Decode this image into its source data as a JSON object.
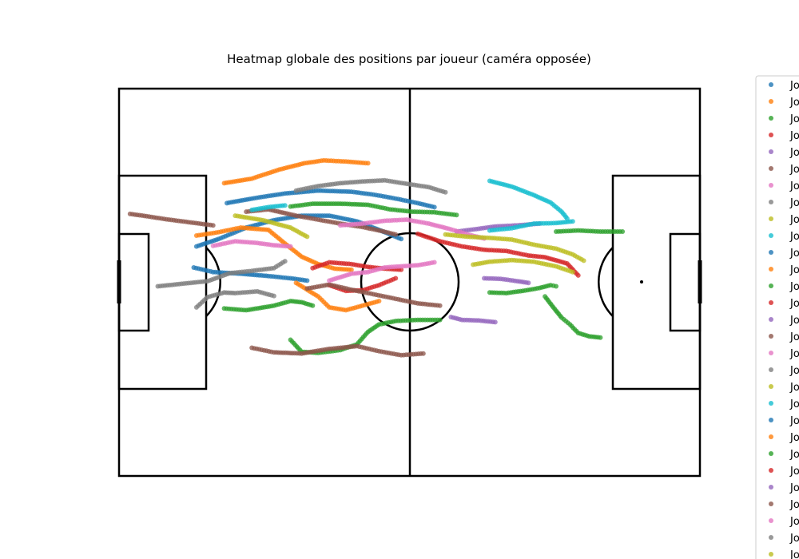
{
  "chart_data": {
    "type": "scatter",
    "title": "Heatmap globale des positions par joueur (caméra opposée)",
    "xlabel": "",
    "ylabel": "",
    "xlim": [
      0,
      105
    ],
    "ylim": [
      0,
      68
    ],
    "grid": false,
    "legend": {
      "placement": "right-outside",
      "visible_text": "Jo"
    },
    "colors": [
      "#1f77b4",
      "#ff7f0e",
      "#2ca02c",
      "#d62728",
      "#9467bd",
      "#8c564b",
      "#e377c2",
      "#7f7f7f",
      "#bcbd22",
      "#17becf"
    ],
    "series": [
      {
        "color": "#1f77b4",
        "points": [
          [
            19.5,
            47.9
          ],
          [
            24,
            48.7
          ],
          [
            30,
            49.6
          ],
          [
            36,
            50.1
          ],
          [
            42,
            49.9
          ],
          [
            46,
            49.4
          ],
          [
            50,
            48.7
          ],
          [
            54,
            47.9
          ],
          [
            57,
            47.2
          ]
        ]
      },
      {
        "color": "#1f77b4",
        "points": [
          [
            14,
            40.3
          ],
          [
            18,
            41.6
          ],
          [
            23,
            43.6
          ],
          [
            28,
            44.9
          ],
          [
            33,
            45.7
          ],
          [
            38,
            45.7
          ],
          [
            43,
            44.7
          ],
          [
            47,
            43.2
          ],
          [
            51,
            41.6
          ]
        ]
      },
      {
        "color": "#1f77b4",
        "points": [
          [
            13.5,
            36.6
          ],
          [
            17,
            35.8
          ],
          [
            22,
            35.5
          ],
          [
            27,
            35.1
          ],
          [
            31,
            34.7
          ],
          [
            34,
            34.3
          ]
        ]
      },
      {
        "color": "#ff7f0e",
        "points": [
          [
            19,
            51.4
          ],
          [
            24,
            52.2
          ],
          [
            29,
            53.8
          ],
          [
            33.5,
            54.9
          ],
          [
            37,
            55.4
          ],
          [
            41,
            55.2
          ],
          [
            45,
            54.9
          ]
        ]
      },
      {
        "color": "#ff7f0e",
        "points": [
          [
            14,
            42.2
          ],
          [
            18,
            42.8
          ],
          [
            22,
            43.6
          ],
          [
            27,
            43.2
          ],
          [
            30,
            40.8
          ],
          [
            33,
            38.5
          ],
          [
            36,
            37.2
          ],
          [
            39,
            36.4
          ],
          [
            42,
            36.2
          ]
        ]
      },
      {
        "color": "#ff7f0e",
        "points": [
          [
            32,
            33.9
          ],
          [
            36,
            31.5
          ],
          [
            38,
            29.6
          ],
          [
            41,
            29.1
          ],
          [
            44,
            29.9
          ],
          [
            47,
            30.7
          ]
        ]
      },
      {
        "color": "#2ca02c",
        "points": [
          [
            31,
            47.3
          ],
          [
            35,
            47.8
          ],
          [
            40,
            47.8
          ],
          [
            45,
            47.6
          ],
          [
            49,
            46.8
          ],
          [
            53,
            46.4
          ],
          [
            57,
            46.3
          ],
          [
            61,
            45.8
          ]
        ]
      },
      {
        "color": "#2ca02c",
        "points": [
          [
            19,
            29.4
          ],
          [
            23,
            29.1
          ],
          [
            28,
            29.9
          ],
          [
            31,
            30.7
          ],
          [
            33,
            30.5
          ],
          [
            35,
            29.9
          ]
        ]
      },
      {
        "color": "#2ca02c",
        "points": [
          [
            31,
            23.9
          ],
          [
            33,
            21.8
          ],
          [
            36,
            21.6
          ],
          [
            40,
            22.1
          ],
          [
            43,
            23.1
          ],
          [
            45,
            25.3
          ],
          [
            47,
            26.6
          ],
          [
            50,
            27.2
          ],
          [
            54,
            27.4
          ],
          [
            58,
            27.4
          ]
        ]
      },
      {
        "color": "#2ca02c",
        "points": [
          [
            79,
            42.9
          ],
          [
            83,
            43.1
          ],
          [
            87,
            42.9
          ],
          [
            91,
            42.9
          ]
        ]
      },
      {
        "color": "#2ca02c",
        "points": [
          [
            77,
            31.5
          ],
          [
            78.5,
            29.6
          ],
          [
            80,
            27.8
          ],
          [
            81.5,
            26.6
          ],
          [
            83,
            25.1
          ],
          [
            85,
            24.5
          ],
          [
            87,
            24.3
          ]
        ]
      },
      {
        "color": "#2ca02c",
        "points": [
          [
            67,
            32.2
          ],
          [
            70,
            32.1
          ],
          [
            73,
            32.5
          ],
          [
            76,
            33.0
          ],
          [
            78,
            33.5
          ],
          [
            79,
            33.3
          ]
        ]
      },
      {
        "color": "#d62728",
        "points": [
          [
            35,
            36.5
          ],
          [
            38,
            37.5
          ],
          [
            42,
            37.2
          ],
          [
            45,
            36.7
          ],
          [
            48,
            36.4
          ],
          [
            51,
            36.2
          ]
        ]
      },
      {
        "color": "#d62728",
        "points": [
          [
            54,
            42.5
          ],
          [
            58,
            41.2
          ],
          [
            62,
            40.3
          ],
          [
            66,
            39.7
          ],
          [
            70,
            39.5
          ],
          [
            74,
            38.7
          ],
          [
            77,
            38.4
          ],
          [
            81,
            37.3
          ],
          [
            83,
            35.2
          ]
        ]
      },
      {
        "color": "#d62728",
        "points": [
          [
            38,
            33.5
          ],
          [
            41,
            32.5
          ],
          [
            44,
            32.6
          ],
          [
            47,
            33.5
          ],
          [
            50,
            34.7
          ]
        ]
      },
      {
        "color": "#9467bd",
        "points": [
          [
            61,
            42.9
          ],
          [
            65,
            43.4
          ],
          [
            68,
            43.8
          ],
          [
            72,
            44.0
          ],
          [
            76,
            44.3
          ]
        ]
      },
      {
        "color": "#9467bd",
        "points": [
          [
            66,
            34.7
          ],
          [
            69,
            34.6
          ],
          [
            72,
            34.2
          ],
          [
            74,
            33.9
          ]
        ]
      },
      {
        "color": "#9467bd",
        "points": [
          [
            60,
            27.9
          ],
          [
            62,
            27.4
          ],
          [
            65,
            27.3
          ],
          [
            68,
            27.0
          ]
        ]
      },
      {
        "color": "#8c564b",
        "points": [
          [
            23,
            46.4
          ],
          [
            27,
            46.8
          ],
          [
            32,
            45.7
          ],
          [
            36,
            45.0
          ],
          [
            40,
            44.3
          ],
          [
            44,
            43.7
          ],
          [
            47,
            43.1
          ],
          [
            50,
            42.4
          ]
        ]
      },
      {
        "color": "#8c564b",
        "points": [
          [
            34,
            32.9
          ],
          [
            38,
            33.6
          ],
          [
            42,
            32.7
          ],
          [
            46,
            31.9
          ],
          [
            50,
            31.1
          ],
          [
            54,
            30.3
          ],
          [
            58,
            29.9
          ]
        ]
      },
      {
        "color": "#8c564b",
        "points": [
          [
            24,
            22.5
          ],
          [
            28,
            21.7
          ],
          [
            33,
            21.5
          ],
          [
            38,
            22.3
          ],
          [
            43,
            22.8
          ],
          [
            47,
            21.9
          ],
          [
            51,
            21.2
          ],
          [
            55,
            21.5
          ]
        ]
      },
      {
        "color": "#8c564b",
        "points": [
          [
            2,
            46.0
          ],
          [
            5,
            45.6
          ],
          [
            9,
            45.0
          ],
          [
            13,
            44.5
          ],
          [
            17,
            44.0
          ]
        ]
      },
      {
        "color": "#e377c2",
        "points": [
          [
            40,
            44.0
          ],
          [
            44,
            44.3
          ],
          [
            48,
            44.8
          ],
          [
            52,
            45.0
          ],
          [
            56,
            44.3
          ],
          [
            60,
            43.3
          ],
          [
            63,
            42.4
          ],
          [
            66,
            41.7
          ]
        ]
      },
      {
        "color": "#e377c2",
        "points": [
          [
            38,
            34.3
          ],
          [
            42,
            35.5
          ],
          [
            45,
            35.8
          ],
          [
            48,
            36.6
          ],
          [
            51,
            36.8
          ],
          [
            54,
            37.0
          ],
          [
            57,
            37.5
          ]
        ]
      },
      {
        "color": "#e377c2",
        "points": [
          [
            17,
            40.4
          ],
          [
            21,
            41.2
          ],
          [
            25,
            40.9
          ],
          [
            28,
            40.5
          ],
          [
            31,
            40.3
          ]
        ]
      },
      {
        "color": "#7f7f7f",
        "points": [
          [
            32,
            50.1
          ],
          [
            36,
            50.9
          ],
          [
            40,
            51.4
          ],
          [
            44,
            51.7
          ],
          [
            48,
            51.9
          ],
          [
            52,
            51.3
          ],
          [
            56,
            50.7
          ],
          [
            59,
            49.8
          ]
        ]
      },
      {
        "color": "#7f7f7f",
        "points": [
          [
            7,
            33.3
          ],
          [
            10,
            33.6
          ],
          [
            13,
            33.9
          ],
          [
            16,
            34.2
          ],
          [
            20,
            35.6
          ],
          [
            24,
            36.0
          ],
          [
            28,
            36.5
          ],
          [
            30,
            37.7
          ]
        ]
      },
      {
        "color": "#7f7f7f",
        "points": [
          [
            14,
            29.6
          ],
          [
            16,
            31.4
          ],
          [
            19,
            32.2
          ],
          [
            21,
            32.1
          ],
          [
            25,
            32.4
          ],
          [
            28,
            31.6
          ]
        ]
      },
      {
        "color": "#bcbd22",
        "points": [
          [
            21,
            45.7
          ],
          [
            26,
            44.9
          ],
          [
            31,
            43.6
          ],
          [
            34,
            42.0
          ]
        ]
      },
      {
        "color": "#bcbd22",
        "points": [
          [
            59,
            42.4
          ],
          [
            63,
            42.0
          ],
          [
            67,
            41.8
          ],
          [
            71,
            41.5
          ],
          [
            75,
            40.6
          ],
          [
            79,
            39.9
          ],
          [
            82,
            38.9
          ],
          [
            84,
            37.8
          ]
        ]
      },
      {
        "color": "#bcbd22",
        "points": [
          [
            64,
            37.1
          ],
          [
            67,
            37.6
          ],
          [
            71,
            37.9
          ],
          [
            75,
            37.6
          ],
          [
            79,
            36.8
          ],
          [
            82,
            35.8
          ]
        ]
      },
      {
        "color": "#17becf",
        "points": [
          [
            67,
            51.8
          ],
          [
            71,
            50.8
          ],
          [
            75,
            49.3
          ],
          [
            78,
            48.0
          ],
          [
            80,
            46.4
          ],
          [
            81,
            45.2
          ]
        ]
      },
      {
        "color": "#17becf",
        "points": [
          [
            67,
            43.1
          ],
          [
            71,
            43.5
          ],
          [
            75,
            44.3
          ],
          [
            79,
            44.4
          ],
          [
            82,
            44.7
          ]
        ]
      },
      {
        "color": "#17becf",
        "points": [
          [
            24,
            46.7
          ],
          [
            27,
            47.2
          ],
          [
            30,
            47.5
          ]
        ]
      }
    ]
  },
  "legend_entries": [
    "Jo",
    "Jo",
    "Jo",
    "Jo",
    "Jo",
    "Jo",
    "Jo",
    "Jo",
    "Jo",
    "Jo",
    "Jo",
    "Jo",
    "Jo",
    "Jo",
    "Jo",
    "Jo",
    "Jo",
    "Jo",
    "Jo",
    "Jo",
    "Jo",
    "Jo",
    "Jo",
    "Jo",
    "Jo",
    "Jo",
    "Jo",
    "Jo",
    "Jo"
  ],
  "legend_colors": [
    "#1f77b4",
    "#ff7f0e",
    "#2ca02c",
    "#d62728",
    "#9467bd",
    "#8c564b",
    "#e377c2",
    "#7f7f7f",
    "#bcbd22",
    "#17becf",
    "#1f77b4",
    "#ff7f0e",
    "#2ca02c",
    "#d62728",
    "#9467bd",
    "#8c564b",
    "#e377c2",
    "#7f7f7f",
    "#bcbd22",
    "#17becf",
    "#1f77b4",
    "#ff7f0e",
    "#2ca02c",
    "#d62728",
    "#9467bd",
    "#8c564b",
    "#e377c2",
    "#7f7f7f",
    "#bcbd22"
  ]
}
